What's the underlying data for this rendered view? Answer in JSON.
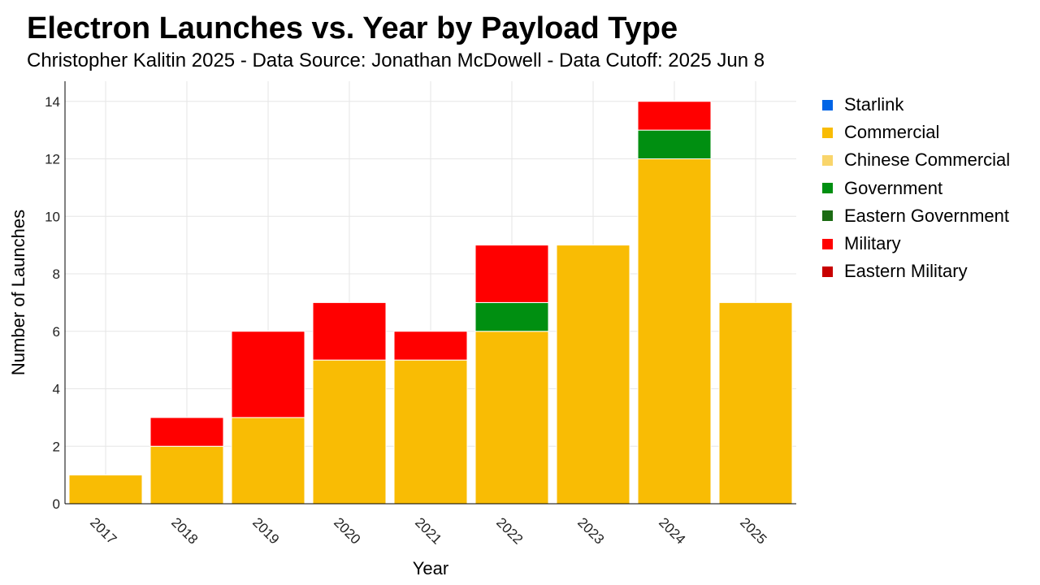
{
  "title": "Electron Launches vs. Year by Payload Type",
  "subtitle": "Christopher Kalitin 2025 - Data Source: Jonathan McDowell - Data Cutoff: 2025 Jun 8",
  "chart_data": {
    "type": "bar",
    "stacked": true,
    "title": "Electron Launches vs. Year by Payload Type",
    "xlabel": "Year",
    "ylabel": "Number of Launches",
    "ylim": [
      0,
      14.7
    ],
    "yticks": [
      0,
      2,
      4,
      6,
      8,
      10,
      12,
      14
    ],
    "categories": [
      "2017",
      "2018",
      "2019",
      "2020",
      "2021",
      "2022",
      "2023",
      "2024",
      "2025"
    ],
    "grid": true,
    "legend_position": "right",
    "series": [
      {
        "name": "Starlink",
        "color": "#0064e6",
        "values": [
          0,
          0,
          0,
          0,
          0,
          0,
          0,
          0,
          0
        ]
      },
      {
        "name": "Commercial",
        "color": "#f9bc04",
        "values": [
          1,
          2,
          3,
          5,
          5,
          6,
          9,
          12,
          7
        ]
      },
      {
        "name": "Chinese Commercial",
        "color": "#f9d56b",
        "values": [
          0,
          0,
          0,
          0,
          0,
          0,
          0,
          0,
          0
        ]
      },
      {
        "name": "Government",
        "color": "#008f11",
        "values": [
          0,
          0,
          0,
          0,
          0,
          1,
          0,
          1,
          0
        ]
      },
      {
        "name": "Eastern Government",
        "color": "#1c6b13",
        "values": [
          0,
          0,
          0,
          0,
          0,
          0,
          0,
          0,
          0
        ]
      },
      {
        "name": "Military",
        "color": "#ff0000",
        "values": [
          0,
          1,
          3,
          2,
          1,
          2,
          0,
          1,
          0
        ]
      },
      {
        "name": "Eastern Military",
        "color": "#c80000",
        "values": [
          0,
          0,
          0,
          0,
          0,
          0,
          0,
          0,
          0
        ]
      }
    ]
  }
}
